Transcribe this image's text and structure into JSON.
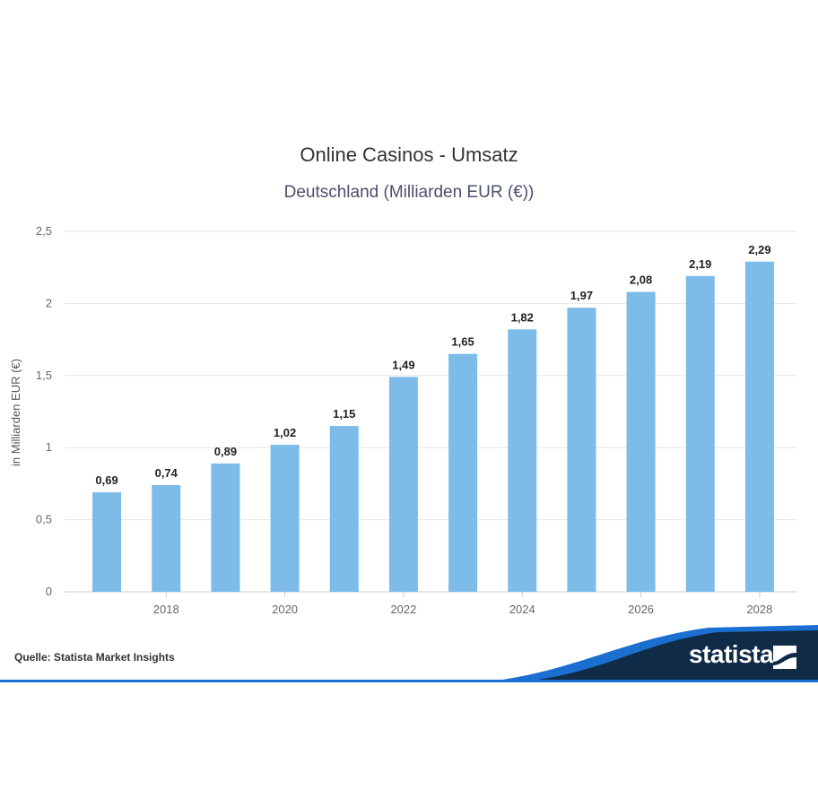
{
  "chart_data": {
    "type": "bar",
    "title": "Online Casinos - Umsatz",
    "subtitle": "Deutschland (Milliarden EUR (€))",
    "ylabel": "in Milliarden EUR (€)",
    "xlabel": "",
    "categories": [
      2017,
      2018,
      2019,
      2020,
      2021,
      2022,
      2023,
      2024,
      2025,
      2026,
      2027,
      2028
    ],
    "values": [
      0.69,
      0.74,
      0.89,
      1.02,
      1.15,
      1.49,
      1.65,
      1.82,
      1.97,
      2.08,
      2.19,
      2.29
    ],
    "value_labels": [
      "0,69",
      "0,74",
      "0,89",
      "1,02",
      "1,15",
      "1,49",
      "1,65",
      "1,82",
      "1,97",
      "2,08",
      "2,19",
      "2,29"
    ],
    "x_tick_labels": [
      "2018",
      "2020",
      "2022",
      "2024",
      "2026",
      "2028"
    ],
    "x_tick_values": [
      2018,
      2020,
      2022,
      2024,
      2026,
      2028
    ],
    "y_ticks": [
      0,
      0.5,
      1,
      1.5,
      2,
      2.5
    ],
    "y_tick_labels": [
      "0",
      "0,5",
      "1",
      "1,5",
      "2",
      "2,5"
    ],
    "ylim": [
      0,
      2.5
    ],
    "grid": true,
    "bar_color": "#7dbbe9"
  },
  "footer": {
    "source": "Quelle: Statista Market Insights",
    "brand": "statista"
  },
  "colors": {
    "navy": "#0f2b46",
    "blue_accent": "#1b6fd1"
  }
}
